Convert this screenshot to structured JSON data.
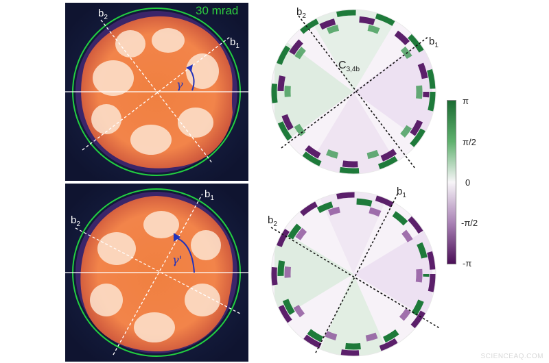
{
  "top_left": {
    "scale_label": "30 mrad",
    "axis_b1": "b",
    "axis_b1_sub": "1",
    "axis_b2": "b",
    "axis_b2_sub": "2",
    "angle_label": "γ"
  },
  "bottom_left": {
    "axis_b1": "b",
    "axis_b1_sub": "1",
    "axis_b2": "b",
    "axis_b2_sub": "2",
    "angle_label": "γ'"
  },
  "top_right": {
    "axis_b1": "b",
    "axis_b1_sub": "1",
    "axis_b2": "b",
    "axis_b2_sub": "2",
    "aberration_label": "C",
    "aberration_sub": "3,4b"
  },
  "bottom_right": {
    "axis_b1": "b",
    "axis_b1_sub": "1",
    "axis_b2": "b",
    "axis_b2_sub": "2"
  },
  "colorbar": {
    "ticks": [
      "π",
      "π/2",
      "0",
      "-π/2",
      "-π"
    ],
    "colors": {
      "high": "#1b6b32",
      "mid": "#f7f5f8",
      "low": "#4b0f57"
    }
  },
  "watermark": "SCIENCEAQ.COM"
}
